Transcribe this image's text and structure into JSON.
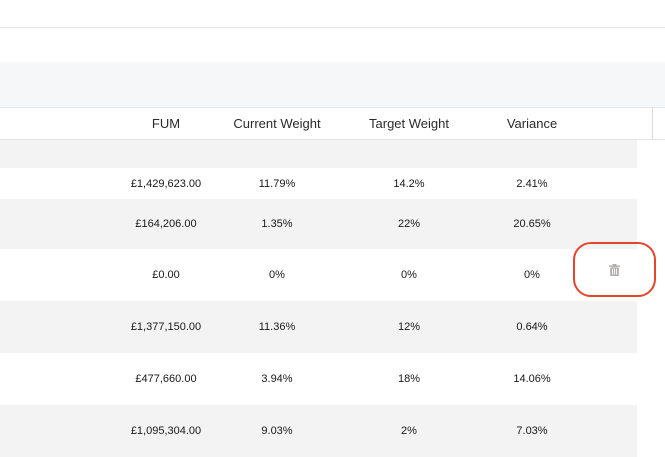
{
  "table": {
    "columns": {
      "fum": "FUM",
      "current_weight": "Current Weight",
      "target_weight": "Target Weight",
      "variance": "Variance"
    },
    "rows": [
      {
        "fum": "£1,429,623.00",
        "current_weight": "11.79%",
        "target_weight": "14.2%",
        "variance": "2.41%"
      },
      {
        "fum": "£164,206.00",
        "current_weight": "1.35%",
        "target_weight": "22%",
        "variance": "20.65%"
      },
      {
        "fum": "£0.00",
        "current_weight": "0%",
        "target_weight": "0%",
        "variance": "0%",
        "has_delete": true
      },
      {
        "fum": "£1,377,150.00",
        "current_weight": "11.36%",
        "target_weight": "12%",
        "variance": "0.64%"
      },
      {
        "fum": "£477,660.00",
        "current_weight": "3.94%",
        "target_weight": "18%",
        "variance": "14.06%"
      },
      {
        "fum": "£1,095,304.00",
        "current_weight": "9.03%",
        "target_weight": "2%",
        "variance": "7.03%"
      }
    ]
  },
  "icons": {
    "delete": "trash-icon"
  },
  "colors": {
    "highlight": "#e4452b",
    "row_shade": "#f3f3f3",
    "icon": "#b0adab"
  }
}
